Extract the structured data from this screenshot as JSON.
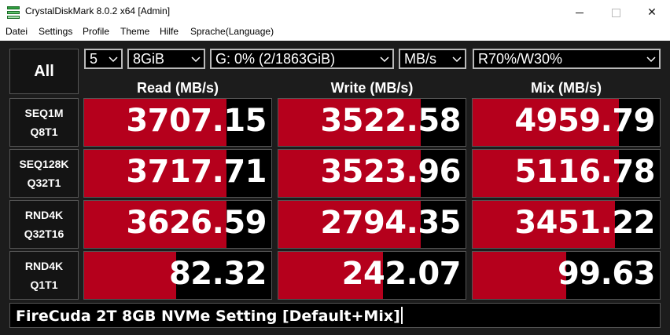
{
  "window": {
    "title": "CrystalDiskMark 8.0.2 x64 [Admin]",
    "buttons": {
      "minimize": "minimize-icon",
      "maximize": "maximize-icon",
      "close_glyph": "✕"
    }
  },
  "menu": [
    "Datei",
    "Settings",
    "Profile",
    "Theme",
    "Hilfe",
    "Sprache(Language)"
  ],
  "controls": {
    "all_label": "All",
    "count": "5",
    "size": "8GiB",
    "drive": "G: 0% (2/1863GiB)",
    "unit": "MB/s",
    "mix_ratio": "R70%/W30%"
  },
  "columns": [
    "Read (MB/s)",
    "Write (MB/s)",
    "Mix (MB/s)"
  ],
  "rows": [
    {
      "label1": "SEQ1M",
      "label2": "Q8T1",
      "read": "3707.15",
      "write": "3522.58",
      "mix": "4959.79",
      "read_fill": 0.76,
      "write_fill": 0.76,
      "mix_fill": 0.78
    },
    {
      "label1": "SEQ128K",
      "label2": "Q32T1",
      "read": "3717.71",
      "write": "3523.96",
      "mix": "5116.78",
      "read_fill": 0.76,
      "write_fill": 0.76,
      "mix_fill": 0.78
    },
    {
      "label1": "RND4K",
      "label2": "Q32T16",
      "read": "3626.59",
      "write": "2794.35",
      "mix": "3451.22",
      "read_fill": 0.76,
      "write_fill": 0.76,
      "mix_fill": 0.76
    },
    {
      "label1": "RND4K",
      "label2": "Q1T1",
      "read": "82.32",
      "write": "242.07",
      "mix": "99.63",
      "read_fill": 0.49,
      "write_fill": 0.56,
      "mix_fill": 0.5
    }
  ],
  "comment": "FireCuda 2T 8GB NVMe Setting [Default+Mix]",
  "colors": {
    "bar": "#b5001c",
    "background": "#1c1c1c",
    "cell": "#000000"
  }
}
